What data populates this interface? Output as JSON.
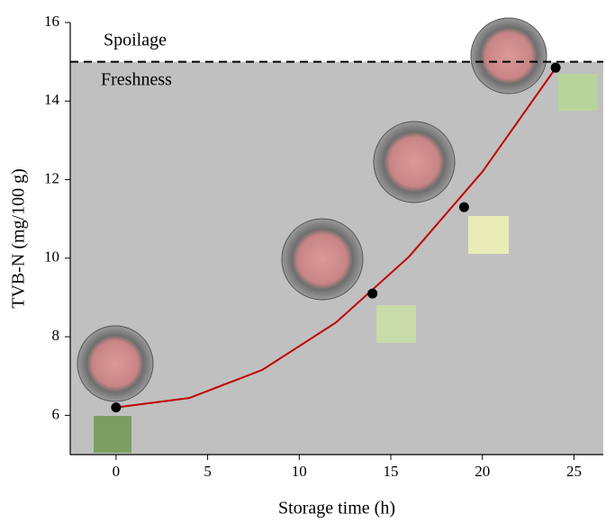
{
  "chart_data": {
    "type": "scatter",
    "xlabel": "Storage time (h)",
    "ylabel": "TVB-N (mg/100 g)",
    "annotations": [
      "Spoilage",
      "Freshness"
    ],
    "threshold": 15,
    "xlim": [
      -2.5,
      26.6
    ],
    "xticks": [
      0,
      5,
      10,
      15,
      20,
      25
    ],
    "ylim": [
      5,
      16
    ],
    "yticks": [
      6,
      8,
      10,
      12,
      14,
      16
    ],
    "series": [
      {
        "color": "#000000",
        "x": [
          0,
          14,
          19,
          24
        ],
        "values": [
          6.2,
          9.1,
          11.3,
          14.85
        ]
      },
      {
        "color": "#c00000",
        "x": [
          0,
          4,
          8,
          12,
          16,
          20,
          24
        ],
        "values": [
          6.2,
          6.44,
          7.16,
          8.36,
          10.04,
          12.2,
          14.84
        ]
      }
    ]
  }
}
